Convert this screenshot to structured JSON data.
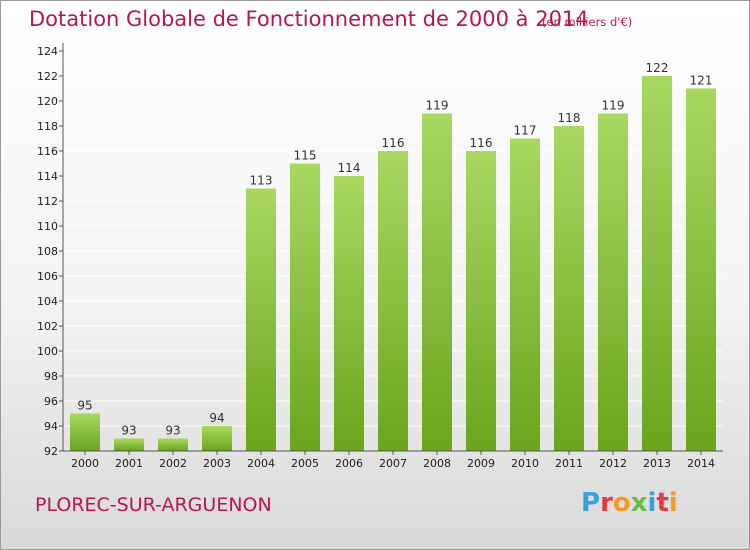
{
  "title": "Dotation Globale de Fonctionnement de 2000 à 2014",
  "subtitle": "(en milliers d'€)",
  "commune": "PLOREC-SUR-ARGUENON",
  "logo": {
    "letters": [
      "P",
      "r",
      "o",
      "x",
      "i",
      "t",
      "i"
    ],
    "colors": [
      "#3aa0db",
      "#e8383d",
      "#f39a1e",
      "#6cbd45",
      "#3aa0db",
      "#e8383d",
      "#f39a1e"
    ]
  },
  "colors": {
    "bar_light": "#a8d860",
    "bar_dark": "#6aa51c",
    "grid": "#ffffff",
    "axis": "#555555",
    "title": "#b5174f"
  },
  "chart_data": {
    "type": "bar",
    "categories": [
      "2000",
      "2001",
      "2002",
      "2003",
      "2004",
      "2005",
      "2006",
      "2007",
      "2008",
      "2009",
      "2010",
      "2011",
      "2012",
      "2013",
      "2014"
    ],
    "values": [
      95,
      93,
      93,
      94,
      113,
      115,
      114,
      116,
      119,
      116,
      117,
      118,
      119,
      122,
      121
    ],
    "ylim": [
      92,
      124
    ],
    "yticks": [
      92,
      94,
      96,
      98,
      100,
      102,
      104,
      106,
      108,
      110,
      112,
      114,
      116,
      118,
      120,
      122,
      124
    ],
    "grid": true,
    "legend": "none"
  }
}
